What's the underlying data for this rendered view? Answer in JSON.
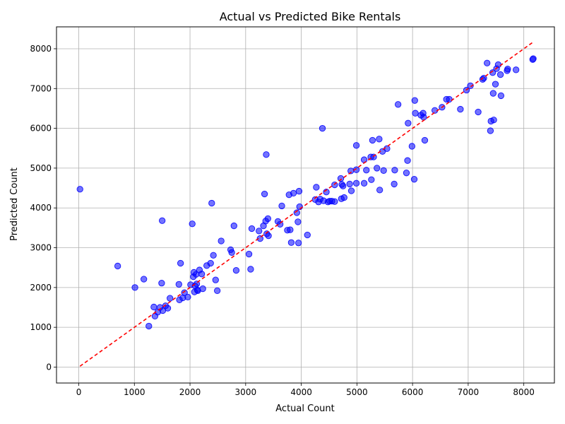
{
  "chart_data": {
    "type": "scatter",
    "title": "Actual vs Predicted Bike Rentals",
    "xlabel": "Actual Count",
    "ylabel": "Predicted Count",
    "xlim": [
      -400,
      8550
    ],
    "ylim": [
      -400,
      8550
    ],
    "xticks": [
      0,
      1000,
      2000,
      3000,
      4000,
      5000,
      6000,
      7000,
      8000
    ],
    "yticks": [
      0,
      1000,
      2000,
      3000,
      4000,
      5000,
      6000,
      7000,
      8000
    ],
    "xtick_labels": [
      "0",
      "1000",
      "2000",
      "3000",
      "4000",
      "5000",
      "6000",
      "7000",
      "8000"
    ],
    "ytick_labels": [
      "0",
      "1000",
      "2000",
      "3000",
      "4000",
      "5000",
      "6000",
      "7000",
      "8000"
    ],
    "grid": true,
    "marker_color": "#0000ff",
    "reference_line": {
      "style": "dashed",
      "color": "#ff0000",
      "from": [
        22,
        22
      ],
      "to": [
        8160,
        8160
      ]
    },
    "points": [
      [
        22,
        4470
      ],
      [
        700,
        2540
      ],
      [
        1010,
        2000
      ],
      [
        1170,
        2210
      ],
      [
        1260,
        1030
      ],
      [
        1350,
        1510
      ],
      [
        1370,
        1280
      ],
      [
        1420,
        1380
      ],
      [
        1460,
        1500
      ],
      [
        1490,
        2110
      ],
      [
        1500,
        3680
      ],
      [
        1510,
        1420
      ],
      [
        1560,
        1540
      ],
      [
        1600,
        1480
      ],
      [
        1640,
        1730
      ],
      [
        1800,
        2080
      ],
      [
        1810,
        1690
      ],
      [
        1830,
        2610
      ],
      [
        1870,
        1740
      ],
      [
        1900,
        1870
      ],
      [
        1960,
        1760
      ],
      [
        2010,
        2070
      ],
      [
        2040,
        3600
      ],
      [
        2060,
        2270
      ],
      [
        2070,
        2380
      ],
      [
        2080,
        1890
      ],
      [
        2090,
        2040
      ],
      [
        2110,
        2330
      ],
      [
        2120,
        2090
      ],
      [
        2130,
        1940
      ],
      [
        2140,
        1920
      ],
      [
        2170,
        2440
      ],
      [
        2210,
        2340
      ],
      [
        2230,
        1970
      ],
      [
        2300,
        2550
      ],
      [
        2370,
        2610
      ],
      [
        2390,
        4120
      ],
      [
        2420,
        2810
      ],
      [
        2460,
        2190
      ],
      [
        2490,
        1920
      ],
      [
        2560,
        3170
      ],
      [
        2730,
        2950
      ],
      [
        2750,
        2880
      ],
      [
        2790,
        3550
      ],
      [
        2830,
        2430
      ],
      [
        3060,
        2840
      ],
      [
        3090,
        2460
      ],
      [
        3110,
        3480
      ],
      [
        3240,
        3420
      ],
      [
        3260,
        3230
      ],
      [
        3320,
        3550
      ],
      [
        3340,
        4350
      ],
      [
        3360,
        3670
      ],
      [
        3370,
        5340
      ],
      [
        3380,
        3350
      ],
      [
        3400,
        3730
      ],
      [
        3410,
        3300
      ],
      [
        3580,
        3660
      ],
      [
        3620,
        3590
      ],
      [
        3650,
        4050
      ],
      [
        3750,
        3440
      ],
      [
        3780,
        4330
      ],
      [
        3800,
        3450
      ],
      [
        3820,
        3130
      ],
      [
        3860,
        4370
      ],
      [
        3920,
        3880
      ],
      [
        3940,
        3650
      ],
      [
        3950,
        3120
      ],
      [
        3960,
        4420
      ],
      [
        3970,
        4030
      ],
      [
        4110,
        3320
      ],
      [
        4250,
        4210
      ],
      [
        4270,
        4520
      ],
      [
        4310,
        4150
      ],
      [
        4340,
        4220
      ],
      [
        4380,
        6000
      ],
      [
        4400,
        4180
      ],
      [
        4450,
        4400
      ],
      [
        4480,
        4150
      ],
      [
        4510,
        4170
      ],
      [
        4550,
        4170
      ],
      [
        4600,
        4160
      ],
      [
        4600,
        4580
      ],
      [
        4710,
        4740
      ],
      [
        4720,
        4230
      ],
      [
        4730,
        4590
      ],
      [
        4750,
        4550
      ],
      [
        4770,
        4260
      ],
      [
        4870,
        4600
      ],
      [
        4890,
        4930
      ],
      [
        4900,
        4430
      ],
      [
        4990,
        5570
      ],
      [
        4990,
        4960
      ],
      [
        4990,
        4620
      ],
      [
        5130,
        5210
      ],
      [
        5130,
        4620
      ],
      [
        5170,
        4950
      ],
      [
        5250,
        5280
      ],
      [
        5260,
        4710
      ],
      [
        5280,
        5700
      ],
      [
        5300,
        5280
      ],
      [
        5360,
        5000
      ],
      [
        5400,
        5730
      ],
      [
        5410,
        4450
      ],
      [
        5460,
        5420
      ],
      [
        5480,
        4940
      ],
      [
        5540,
        5490
      ],
      [
        5670,
        4600
      ],
      [
        5680,
        4950
      ],
      [
        5740,
        6600
      ],
      [
        5890,
        4880
      ],
      [
        5910,
        5190
      ],
      [
        5920,
        6130
      ],
      [
        5990,
        5550
      ],
      [
        6030,
        4720
      ],
      [
        6040,
        6700
      ],
      [
        6050,
        6380
      ],
      [
        6150,
        6330
      ],
      [
        6190,
        6380
      ],
      [
        6200,
        6280
      ],
      [
        6220,
        5700
      ],
      [
        6400,
        6450
      ],
      [
        6530,
        6530
      ],
      [
        6610,
        6730
      ],
      [
        6660,
        6730
      ],
      [
        6860,
        6480
      ],
      [
        6970,
        6960
      ],
      [
        7040,
        7070
      ],
      [
        7180,
        6410
      ],
      [
        7260,
        7230
      ],
      [
        7280,
        7260
      ],
      [
        7340,
        7640
      ],
      [
        7400,
        5940
      ],
      [
        7410,
        6180
      ],
      [
        7440,
        7400
      ],
      [
        7450,
        6880
      ],
      [
        7460,
        6210
      ],
      [
        7490,
        7110
      ],
      [
        7510,
        7500
      ],
      [
        7540,
        7600
      ],
      [
        7580,
        7350
      ],
      [
        7590,
        6820
      ],
      [
        7700,
        7450
      ],
      [
        7710,
        7490
      ],
      [
        7860,
        7470
      ],
      [
        8160,
        7730
      ],
      [
        8170,
        7750
      ]
    ]
  }
}
